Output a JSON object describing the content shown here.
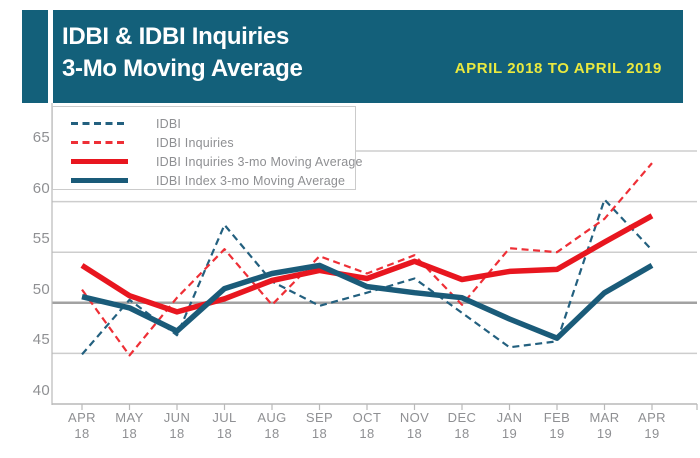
{
  "header": {
    "title_line1": "IDBI & IDBI Inquiries",
    "title_line2": "3-Mo Moving Average",
    "period": "APRIL 2018 TO APRIL 2019",
    "bg_color": "#13607a",
    "period_color": "#eae93f",
    "title_color": "#ffffff"
  },
  "legend": {
    "items": [
      {
        "label": "IDBI",
        "style": "dashed",
        "color": "#23607f"
      },
      {
        "label": "IDBI Inquiries",
        "style": "dashed",
        "color": "#ee2f36"
      },
      {
        "label": "IDBI Inquiries 3-mo Moving Average",
        "style": "solid",
        "color": "#e8161f"
      },
      {
        "label": "IDBI Index 3-mo Moving Average",
        "style": "solid",
        "color": "#1a5b79"
      }
    ]
  },
  "chart_data": {
    "type": "line",
    "title": "IDBI & IDBI Inquiries 3-Mo Moving Average",
    "subtitle": "APRIL 2018 TO APRIL 2019",
    "categories": [
      "APR 18",
      "MAY 18",
      "JUN 18",
      "JUL 18",
      "AUG 18",
      "SEP 18",
      "OCT 18",
      "NOV 18",
      "DEC 18",
      "JAN 19",
      "FEB 19",
      "MAR 19",
      "APR 19"
    ],
    "series": [
      {
        "name": "IDBI",
        "style": "dashed",
        "color": "#23607f",
        "width": 2.2,
        "values": [
          44.9,
          50.3,
          46.8,
          57.7,
          52.1,
          49.7,
          51.0,
          52.4,
          49.0,
          45.6,
          46.2,
          60.2,
          55.2
        ]
      },
      {
        "name": "IDBI Inquiries",
        "style": "dashed",
        "color": "#ee2f36",
        "width": 2.2,
        "values": [
          51.3,
          44.8,
          50.5,
          55.3,
          49.8,
          54.6,
          52.9,
          54.7,
          49.8,
          55.4,
          55.0,
          58.3,
          63.8
        ]
      },
      {
        "name": "IDBI Inquiries 3-mo Moving Average",
        "style": "solid",
        "color": "#e8161f",
        "width": 5.5,
        "values": [
          53.7,
          50.7,
          49.1,
          50.4,
          52.2,
          53.2,
          52.4,
          54.1,
          52.3,
          53.1,
          53.3,
          56.0,
          58.6
        ]
      },
      {
        "name": "IDBI Index 3-mo Moving Average",
        "style": "solid",
        "color": "#1a5b79",
        "width": 5.5,
        "values": [
          50.6,
          49.5,
          47.2,
          51.4,
          52.9,
          53.7,
          51.6,
          51.0,
          50.5,
          48.4,
          46.5,
          51.0,
          53.7
        ]
      }
    ],
    "ylim": [
      40,
      65
    ],
    "yticks": [
      65,
      60,
      55,
      50,
      45,
      40
    ],
    "emphasized_gridline": 50,
    "grid": "horizontal",
    "legend_position": "top-left",
    "colors": {
      "grid_light": "#cdcdcd",
      "grid_dark": "#a2a2a2",
      "axis": "#b9b9b9",
      "tick_text": "#8f9093"
    }
  }
}
